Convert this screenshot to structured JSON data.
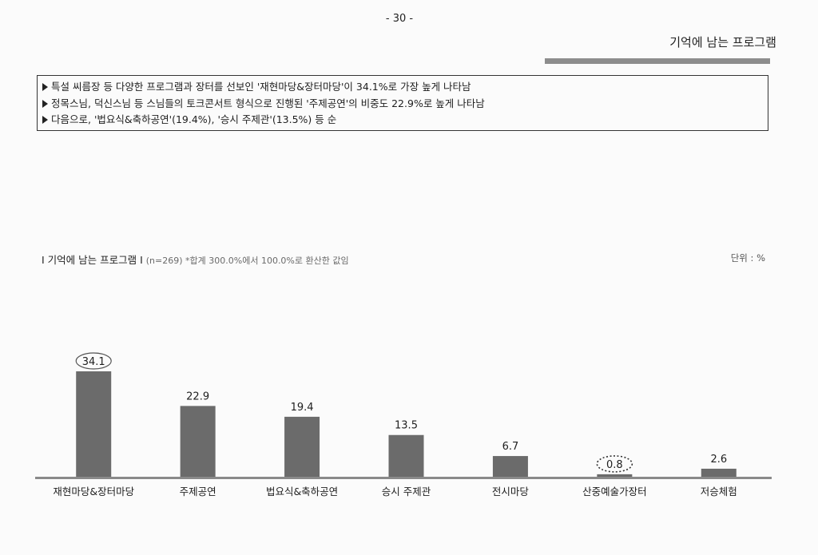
{
  "page": {
    "number": "- 30 -",
    "section_title": "기억에 남는 프로그램"
  },
  "summary": [
    "특설 씨름장 등 다양한 프로그램과 장터를 선보인 '재현마당&장터마당'이 34.1%로 가장 높게 나타남",
    "정목스님, 덕신스님 등 스님들의 토크콘서트 형식으로 진행된 '주제공연'의 비중도 22.9%로 높게 나타남",
    "다음으로, '법요식&축하공연'(19.4%), '승시 주제관'(13.5%) 등 순"
  ],
  "chart_header": {
    "title": "I 기억에 남는 프로그램 I",
    "note": "(n=269) *합계 300.0%에서 100.0%로 환산한 값임",
    "unit": "단위 : %"
  },
  "colors": {
    "bar": "#6b6b6b",
    "baseline": "#8a8a8a"
  },
  "chart_data": {
    "type": "bar",
    "title": "기억에 남는 프로그램",
    "categories": [
      "재현마당&장터마당",
      "주제공연",
      "법요식&축하공연",
      "승시 주제관",
      "전시마당",
      "산중예술가장터",
      "저승체험"
    ],
    "values": [
      34.1,
      22.9,
      19.4,
      13.5,
      6.7,
      0.8,
      2.6
    ],
    "data_labels": [
      "34.1",
      "22.9",
      "19.4",
      "13.5",
      "6.7",
      "0.8",
      "2.6"
    ],
    "highlight_max": 0,
    "highlight_min": 5,
    "ylim": [
      0,
      40
    ],
    "grid": false,
    "legend": "none"
  }
}
